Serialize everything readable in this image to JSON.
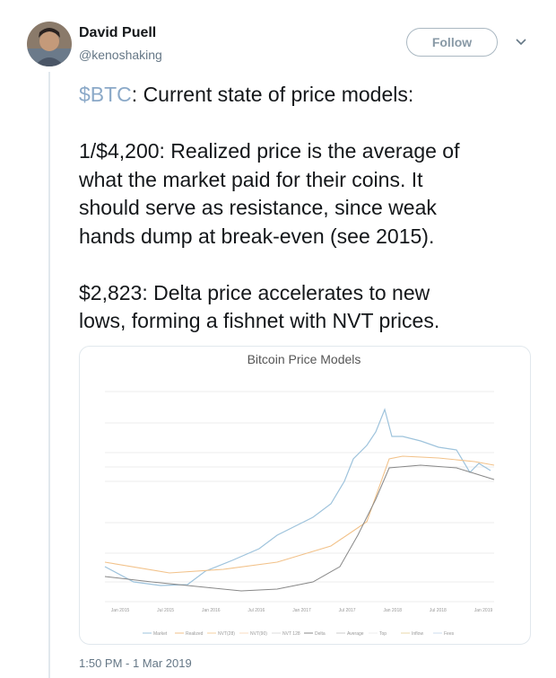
{
  "author": {
    "name": "David Puell",
    "handle": "@kenoshaking"
  },
  "follow_button": "Follow",
  "tweet": {
    "cashtag": "$BTC",
    "paragraphs": [
      [
        ": Current state of price models:"
      ],
      [
        "1/$4,200: Realized price is the average of",
        "what the market paid for their coins. It",
        "should serve as resistance, since weak",
        "hands dump at break-even (see 2015)."
      ],
      [
        "$2,823: Delta price accelerates to new",
        "lows, forming a fishnet with NVT prices."
      ]
    ]
  },
  "image": {
    "title": "Bitcoin Price Models",
    "x_labels": [
      "Jan 2015",
      "Jul 2015",
      "Jan 2016",
      "Jul 2016",
      "Jan 2017",
      "Jul 2017",
      "Jan 2018",
      "Jul 2018",
      "Jan 2019"
    ],
    "legend": [
      "Market",
      "Realized",
      "NVT(28)",
      "NVT(90)",
      "NVT 128",
      "Delta",
      "Average",
      "Top",
      "Inflow",
      "Fees"
    ]
  },
  "timestamp": "1:50 PM - 1 Mar 2019"
}
